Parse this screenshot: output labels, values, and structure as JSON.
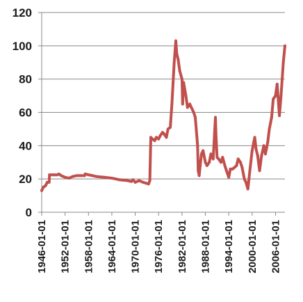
{
  "chart_data": {
    "type": "line",
    "title": "",
    "xlabel": "",
    "ylabel": "",
    "xlim": [
      "1946-01-01",
      "2008-06-01"
    ],
    "ylim": [
      0,
      120
    ],
    "y_ticks": [
      0,
      20,
      40,
      60,
      80,
      100,
      120
    ],
    "x_tick_labels": [
      "1946-01-01",
      "1952-01-01",
      "1958-01-01",
      "1964-01-01",
      "1970-01-01",
      "1976-01-01",
      "1982-01-01",
      "1988-01-01",
      "1994-01-01",
      "2000-01-01",
      "2006-01-01"
    ],
    "grid": "horizontal",
    "legend": "none",
    "series": [
      {
        "color": "#c0504d",
        "points": [
          [
            "1946-01-01",
            13
          ],
          [
            "1946-06-01",
            15
          ],
          [
            "1947-01-01",
            16
          ],
          [
            "1947-06-01",
            18
          ],
          [
            "1947-12-01",
            18
          ],
          [
            "1948-01-01",
            22.5
          ],
          [
            "1949-01-01",
            22.5
          ],
          [
            "1950-01-01",
            22.5
          ],
          [
            "1950-06-01",
            23
          ],
          [
            "1951-01-01",
            22
          ],
          [
            "1952-01-01",
            21
          ],
          [
            "1953-01-01",
            20.5
          ],
          [
            "1954-01-01",
            21.5
          ],
          [
            "1955-01-01",
            22
          ],
          [
            "1956-01-01",
            22
          ],
          [
            "1957-01-01",
            22
          ],
          [
            "1957-03-01",
            23
          ],
          [
            "1958-01-01",
            22.5
          ],
          [
            "1959-01-01",
            22
          ],
          [
            "1960-01-01",
            21.5
          ],
          [
            "1962-01-01",
            21
          ],
          [
            "1964-01-01",
            20.5
          ],
          [
            "1966-01-01",
            19.5
          ],
          [
            "1968-01-01",
            19
          ],
          [
            "1969-01-01",
            18.5
          ],
          [
            "1969-06-01",
            19.5
          ],
          [
            "1970-01-01",
            18
          ],
          [
            "1971-01-01",
            19
          ],
          [
            "1972-01-01",
            18
          ],
          [
            "1973-06-01",
            17
          ],
          [
            "1973-10-01",
            19
          ],
          [
            "1974-01-01",
            45
          ],
          [
            "1974-06-01",
            44
          ],
          [
            "1975-01-01",
            43
          ],
          [
            "1975-06-01",
            45
          ],
          [
            "1976-01-01",
            44
          ],
          [
            "1976-06-01",
            46
          ],
          [
            "1977-01-01",
            48
          ],
          [
            "1977-06-01",
            47
          ],
          [
            "1978-01-01",
            45
          ],
          [
            "1978-06-01",
            50
          ],
          [
            "1979-01-01",
            51
          ],
          [
            "1979-06-01",
            65
          ],
          [
            "1980-01-01",
            90
          ],
          [
            "1980-06-01",
            103
          ],
          [
            "1980-09-01",
            95
          ],
          [
            "1981-01-01",
            92
          ],
          [
            "1981-06-01",
            85
          ],
          [
            "1982-01-01",
            80
          ],
          [
            "1982-03-01",
            65
          ],
          [
            "1982-06-01",
            78
          ],
          [
            "1983-01-01",
            70
          ],
          [
            "1983-06-01",
            63
          ],
          [
            "1984-01-01",
            65
          ],
          [
            "1985-01-01",
            60
          ],
          [
            "1985-06-01",
            57
          ],
          [
            "1986-01-01",
            40
          ],
          [
            "1986-03-01",
            25
          ],
          [
            "1986-06-01",
            22
          ],
          [
            "1986-09-01",
            28
          ],
          [
            "1987-01-01",
            35
          ],
          [
            "1987-06-01",
            37
          ],
          [
            "1988-01-01",
            30
          ],
          [
            "1988-06-01",
            28
          ],
          [
            "1989-01-01",
            30
          ],
          [
            "1989-06-01",
            35
          ],
          [
            "1990-01-01",
            32
          ],
          [
            "1990-08-01",
            57
          ],
          [
            "1990-10-01",
            45
          ],
          [
            "1991-01-01",
            33
          ],
          [
            "1991-06-01",
            32
          ],
          [
            "1992-01-01",
            30
          ],
          [
            "1992-06-01",
            33
          ],
          [
            "1993-01-01",
            28
          ],
          [
            "1993-06-01",
            25
          ],
          [
            "1994-01-01",
            21
          ],
          [
            "1994-06-01",
            26
          ],
          [
            "1995-01-01",
            26
          ],
          [
            "1996-01-01",
            28
          ],
          [
            "1996-06-01",
            32
          ],
          [
            "1997-01-01",
            30
          ],
          [
            "1997-06-01",
            27
          ],
          [
            "1998-01-01",
            20
          ],
          [
            "1998-06-01",
            18
          ],
          [
            "1998-12-01",
            14
          ],
          [
            "1999-06-01",
            25
          ],
          [
            "2000-01-01",
            37
          ],
          [
            "2000-06-01",
            42
          ],
          [
            "2000-09-01",
            45
          ],
          [
            "2001-01-01",
            38
          ],
          [
            "2001-06-01",
            34
          ],
          [
            "2001-12-01",
            25
          ],
          [
            "2002-06-01",
            34
          ],
          [
            "2003-01-01",
            40
          ],
          [
            "2003-06-01",
            35
          ],
          [
            "2004-01-01",
            42
          ],
          [
            "2004-06-01",
            50
          ],
          [
            "2005-01-01",
            57
          ],
          [
            "2005-06-01",
            68
          ],
          [
            "2006-01-01",
            70
          ],
          [
            "2006-06-01",
            77
          ],
          [
            "2007-01-01",
            58
          ],
          [
            "2007-06-01",
            70
          ],
          [
            "2008-01-01",
            90
          ],
          [
            "2008-06-01",
            100
          ]
        ]
      }
    ]
  }
}
